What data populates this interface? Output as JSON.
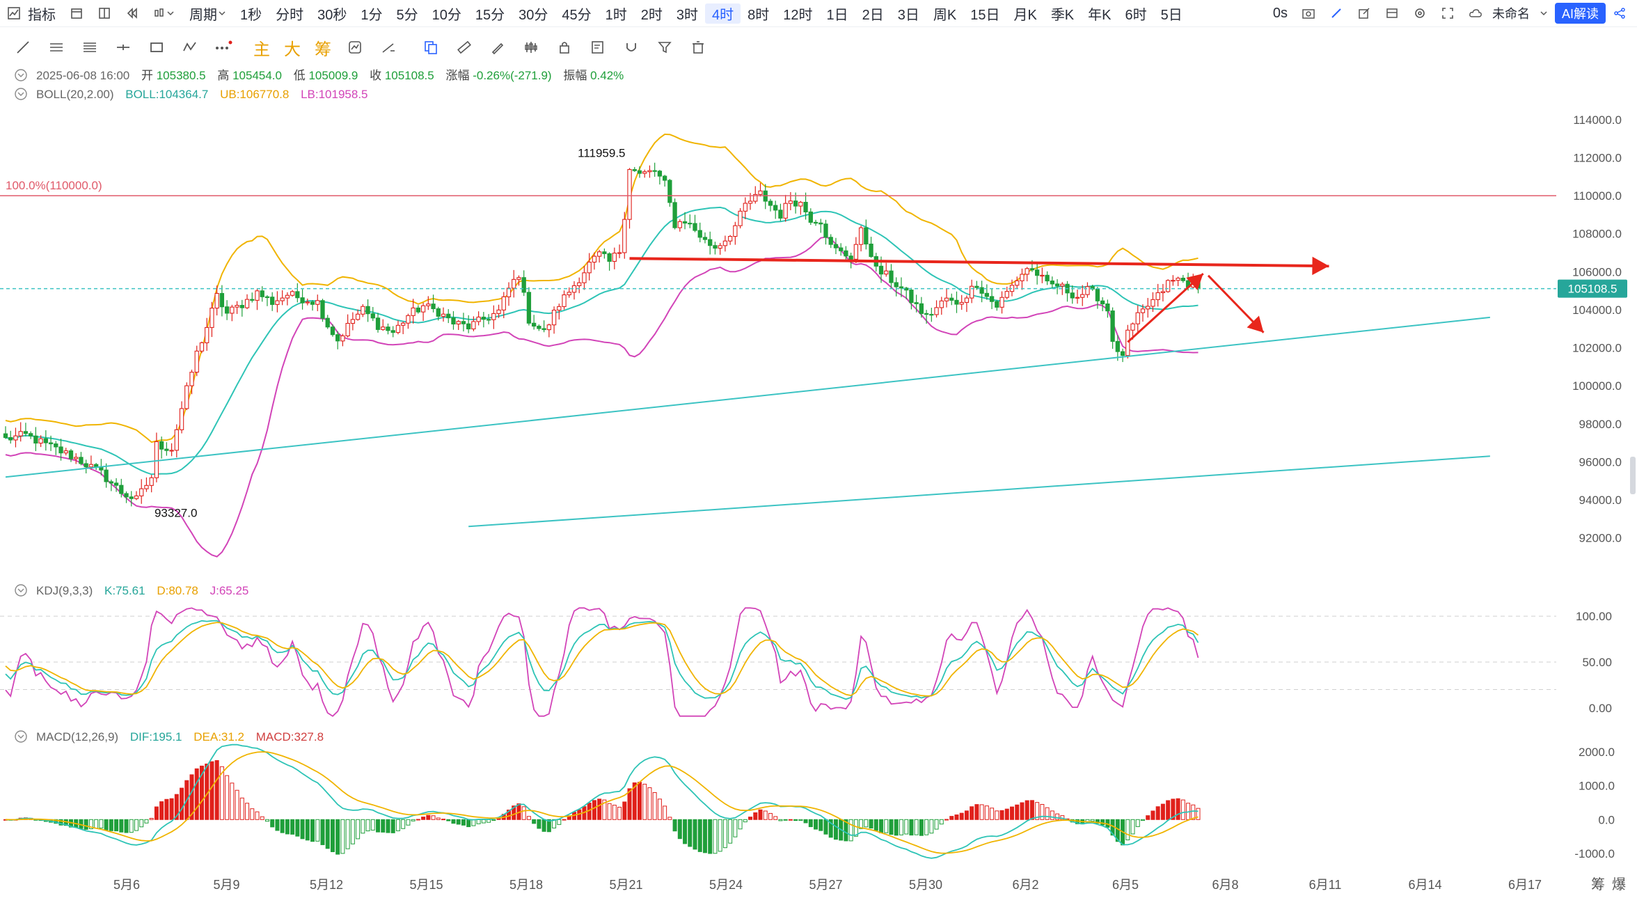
{
  "toolbar": {
    "indicator_label": "指标",
    "period_label": "周期",
    "timeframes": [
      "1秒",
      "分时",
      "30秒",
      "1分",
      "5分",
      "10分",
      "15分",
      "30分",
      "45分",
      "1时",
      "2时",
      "3时",
      "4时",
      "8时",
      "12时",
      "1日",
      "2日",
      "3日",
      "周K",
      "15日",
      "月K",
      "季K",
      "年K",
      "6时",
      "5日"
    ],
    "active_timeframe": "4时",
    "countdown": "0s",
    "layout_name": "未命名",
    "ai_label": "AI解读",
    "main_label": "主",
    "big_label": "大",
    "chip_label": "筹"
  },
  "colors": {
    "up": "#e0201b",
    "down": "#1f9f3a",
    "boll_mid": "#2ec4b6",
    "boll_ub": "#f0b400",
    "boll_lb": "#d244b8",
    "kdj_k": "#2ec4b6",
    "kdj_d": "#f0b400",
    "kdj_j": "#d244b8",
    "trendline": "#3cc3c3",
    "resistance": "#e8261c",
    "fib": "#e05a6a",
    "accent": "#2962ff"
  },
  "ohlc_info": {
    "date": "2025-06-08 16:00",
    "open_label": "开",
    "open": "105380.5",
    "high_label": "高",
    "high": "105454.0",
    "low_label": "低",
    "low": "105009.9",
    "close_label": "收",
    "close": "105108.5",
    "change_label": "涨幅",
    "change": "-0.26%(-271.9)",
    "amp_label": "振幅",
    "amp": "0.42%"
  },
  "boll_info": {
    "name": "BOLL(20,2.00)",
    "boll": "BOLL:104364.7",
    "ub": "UB:106770.8",
    "lb": "LB:101958.5"
  },
  "kdj_info": {
    "name": "KDJ(9,3,3)",
    "k": "K:75.61",
    "d": "D:80.78",
    "j": "J:65.25"
  },
  "macd_info": {
    "name": "MACD(12,26,9)",
    "dif": "DIF:195.1",
    "dea": "DEA:31.2",
    "macd": "MACD:327.8"
  },
  "bottom_right": {
    "chips_label": "筹",
    "burst_label": "爆"
  },
  "chart_data": {
    "type": "candlestick",
    "interval": "4h",
    "current_price": "105108.5",
    "price_axis": {
      "min": 91000,
      "max": 114800,
      "ticks": [
        "114000.0",
        "112000.0",
        "110000.0",
        "108000.0",
        "106000.0",
        "104000.0",
        "102000.0",
        "100000.0",
        "98000.0",
        "96000.0",
        "94000.0",
        "92000.0"
      ]
    },
    "x_labels": [
      "5月6",
      "5月9",
      "5月12",
      "5月15",
      "5月18",
      "5月21",
      "5月24",
      "5月27",
      "5月30",
      "6月2",
      "6月5",
      "6月8",
      "6月11",
      "6月14",
      "6月17"
    ],
    "fib_label": "100.0%(110000.0)",
    "fib_level": 110000,
    "annotations": {
      "high_label": "111959.5",
      "high_value": 111959.5,
      "low_label": "93327.0",
      "low_value": 93327.0
    },
    "price_path": [
      [
        0,
        97200
      ],
      [
        4,
        97400
      ],
      [
        8,
        96900
      ],
      [
        14,
        96200
      ],
      [
        19,
        95400
      ],
      [
        23,
        94400
      ],
      [
        26,
        94000
      ],
      [
        29,
        95200
      ],
      [
        30,
        96900
      ],
      [
        33,
        96700
      ],
      [
        35,
        98800
      ],
      [
        38,
        101700
      ],
      [
        40,
        103100
      ],
      [
        42,
        104700
      ],
      [
        44,
        103800
      ],
      [
        47,
        104300
      ],
      [
        50,
        104900
      ],
      [
        53,
        104400
      ],
      [
        56,
        104800
      ],
      [
        59,
        104600
      ],
      [
        62,
        104400
      ],
      [
        64,
        103200
      ],
      [
        66,
        102400
      ],
      [
        69,
        103500
      ],
      [
        71,
        104000
      ],
      [
        74,
        103200
      ],
      [
        77,
        102800
      ],
      [
        80,
        103700
      ],
      [
        83,
        104200
      ],
      [
        86,
        103900
      ],
      [
        89,
        103300
      ],
      [
        92,
        103100
      ],
      [
        95,
        103500
      ],
      [
        98,
        103900
      ],
      [
        100,
        105100
      ],
      [
        102,
        105900
      ],
      [
        104,
        103500
      ],
      [
        107,
        102800
      ],
      [
        110,
        104300
      ],
      [
        113,
        105300
      ],
      [
        116,
        106400
      ],
      [
        118,
        106900
      ],
      [
        120,
        106500
      ],
      [
        122,
        107100
      ],
      [
        123,
        109000
      ],
      [
        124,
        111500
      ],
      [
        126,
        111100
      ],
      [
        129,
        111300
      ],
      [
        131,
        110600
      ],
      [
        133,
        108500
      ],
      [
        135,
        108700
      ],
      [
        137,
        108200
      ],
      [
        139,
        107600
      ],
      [
        141,
        107300
      ],
      [
        143,
        107700
      ],
      [
        145,
        108400
      ],
      [
        147,
        109500
      ],
      [
        150,
        110100
      ],
      [
        152,
        109500
      ],
      [
        154,
        109000
      ],
      [
        156,
        109800
      ],
      [
        158,
        109600
      ],
      [
        160,
        108800
      ],
      [
        162,
        108700
      ],
      [
        164,
        107300
      ],
      [
        166,
        107000
      ],
      [
        168,
        106800
      ],
      [
        170,
        108100
      ],
      [
        172,
        107000
      ],
      [
        173,
        106100
      ],
      [
        175,
        105800
      ],
      [
        178,
        105100
      ],
      [
        181,
        104200
      ],
      [
        183,
        103600
      ],
      [
        185,
        104100
      ],
      [
        187,
        104600
      ],
      [
        189,
        104200
      ],
      [
        191,
        104800
      ],
      [
        193,
        105400
      ],
      [
        195,
        104700
      ],
      [
        197,
        104200
      ],
      [
        199,
        104900
      ],
      [
        201,
        105600
      ],
      [
        203,
        106200
      ],
      [
        205,
        105900
      ],
      [
        207,
        105300
      ],
      [
        209,
        105300
      ],
      [
        211,
        105000
      ],
      [
        213,
        104700
      ],
      [
        215,
        105000
      ],
      [
        217,
        104700
      ],
      [
        219,
        104000
      ],
      [
        220,
        102500
      ],
      [
        221,
        101600
      ],
      [
        222,
        101700
      ],
      [
        223,
        102700
      ],
      [
        225,
        103600
      ],
      [
        227,
        104200
      ],
      [
        229,
        104700
      ],
      [
        231,
        105400
      ],
      [
        233,
        105600
      ],
      [
        235,
        105400
      ],
      [
        237,
        105100
      ]
    ],
    "trendlines": [
      {
        "name": "upper-support",
        "x1": 0,
        "y1": 95200,
        "x2": 295,
        "y2": 103600
      },
      {
        "name": "lower-channel",
        "x1": 92,
        "y1": 92600,
        "x2": 295,
        "y2": 96300
      }
    ],
    "resistance_line": {
      "x1": 124,
      "y1": 106700,
      "x2": 263,
      "y2": 106300
    },
    "arrows": [
      {
        "x1": 223,
        "y1": 102300,
        "x2": 238,
        "y2": 105900
      },
      {
        "x1": 239,
        "y1": 105800,
        "x2": 250,
        "y2": 102800
      }
    ],
    "kdj_axis": {
      "min": -10,
      "max": 110,
      "ticks": [
        "100.00",
        "50.00",
        "0.00"
      ]
    },
    "macd_axis": {
      "min": -1250,
      "max": 2250,
      "ticks": [
        "2000.0",
        "1000.0",
        "0.0",
        "-1000.0"
      ]
    }
  }
}
